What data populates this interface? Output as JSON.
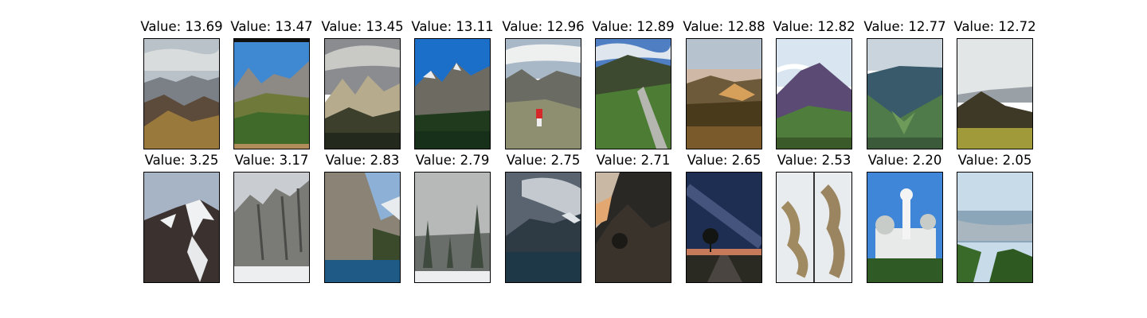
{
  "rows": [
    {
      "items": [
        {
          "label": "Value: 13.69",
          "scene": "cloudy-ridge-brown"
        },
        {
          "label": "Value: 13.47",
          "scene": "blue-sky-peaks-green-slope"
        },
        {
          "label": "Value: 13.45",
          "scene": "stormy-rocky-crest"
        },
        {
          "label": "Value: 13.11",
          "scene": "sunny-alpine-peaks-forest"
        },
        {
          "label": "Value: 12.96",
          "scene": "hiker-red-jacket-valley"
        },
        {
          "label": "Value: 12.89",
          "scene": "grassy-summit-trail"
        },
        {
          "label": "Value: 12.88",
          "scene": "sunset-hill-shrubs"
        },
        {
          "label": "Value: 12.82",
          "scene": "purple-mountain-green-slope"
        },
        {
          "label": "Value: 12.77",
          "scene": "misty-green-valley"
        },
        {
          "label": "Value: 12.72",
          "scene": "hazy-ridge-meadow"
        }
      ]
    },
    {
      "items": [
        {
          "label": "Value: 3.25",
          "scene": "snowy-peak-dark-ridge"
        },
        {
          "label": "Value: 3.17",
          "scene": "grey-cliffs-snow"
        },
        {
          "label": "Value: 2.83",
          "scene": "canyon-lake"
        },
        {
          "label": "Value: 2.79",
          "scene": "foggy-pines-snow"
        },
        {
          "label": "Value: 2.75",
          "scene": "dark-mountain-lake"
        },
        {
          "label": "Value: 2.71",
          "scene": "rock-arch-sunset"
        },
        {
          "label": "Value: 2.65",
          "scene": "milky-way-road-trees"
        },
        {
          "label": "Value: 2.53",
          "scene": "aerial-snow-terrain-split"
        },
        {
          "label": "Value: 2.20",
          "scene": "white-domed-building"
        },
        {
          "label": "Value: 2.05",
          "scene": "aerial-city-river"
        }
      ]
    }
  ]
}
